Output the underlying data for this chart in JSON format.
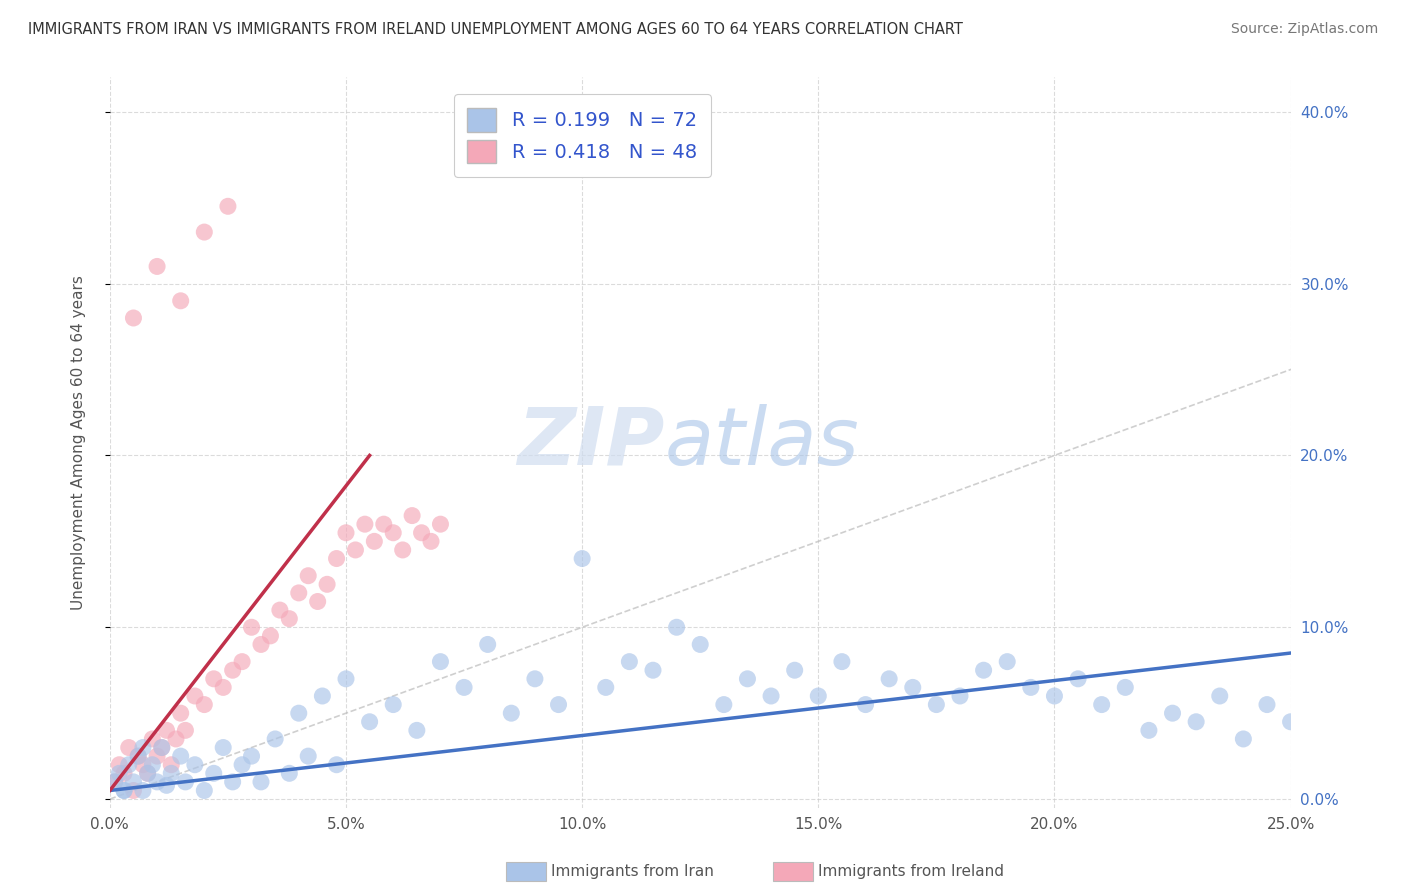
{
  "title": "IMMIGRANTS FROM IRAN VS IMMIGRANTS FROM IRELAND UNEMPLOYMENT AMONG AGES 60 TO 64 YEARS CORRELATION CHART",
  "source": "Source: ZipAtlas.com",
  "xlabel_center": "Immigrants from Iran",
  "ylabel": "Unemployment Among Ages 60 to 64 years",
  "yticks_right_vals": [
    0.0,
    0.1,
    0.2,
    0.3,
    0.4
  ],
  "xlim": [
    0.0,
    0.25
  ],
  "ylim": [
    -0.005,
    0.42
  ],
  "legend_iran_R": "0.199",
  "legend_iran_N": "72",
  "legend_ireland_R": "0.418",
  "legend_ireland_N": "48",
  "color_iran": "#aac4e8",
  "color_ireland": "#f4a8b8",
  "color_iran_line": "#4472c4",
  "color_ireland_line": "#c0304a",
  "color_legend_text": "#3355cc",
  "watermark_zip": "ZIP",
  "watermark_atlas": "atlas",
  "background_color": "#ffffff",
  "grid_color": "#cccccc",
  "iran_scatter_x": [
    0.001,
    0.002,
    0.003,
    0.004,
    0.005,
    0.006,
    0.007,
    0.008,
    0.009,
    0.01,
    0.011,
    0.012,
    0.013,
    0.015,
    0.016,
    0.018,
    0.02,
    0.022,
    0.024,
    0.026,
    0.028,
    0.03,
    0.032,
    0.035,
    0.038,
    0.04,
    0.042,
    0.045,
    0.048,
    0.05,
    0.055,
    0.06,
    0.065,
    0.07,
    0.075,
    0.08,
    0.085,
    0.09,
    0.095,
    0.1,
    0.105,
    0.11,
    0.115,
    0.12,
    0.125,
    0.13,
    0.135,
    0.14,
    0.145,
    0.15,
    0.155,
    0.16,
    0.165,
    0.17,
    0.175,
    0.18,
    0.185,
    0.19,
    0.195,
    0.2,
    0.205,
    0.21,
    0.215,
    0.22,
    0.225,
    0.23,
    0.235,
    0.24,
    0.245,
    0.25,
    0.003,
    0.007
  ],
  "iran_scatter_y": [
    0.01,
    0.015,
    0.005,
    0.02,
    0.01,
    0.025,
    0.005,
    0.015,
    0.02,
    0.01,
    0.03,
    0.008,
    0.015,
    0.025,
    0.01,
    0.02,
    0.005,
    0.015,
    0.03,
    0.01,
    0.02,
    0.025,
    0.01,
    0.035,
    0.015,
    0.05,
    0.025,
    0.06,
    0.02,
    0.07,
    0.045,
    0.055,
    0.04,
    0.08,
    0.065,
    0.09,
    0.05,
    0.07,
    0.055,
    0.14,
    0.065,
    0.08,
    0.075,
    0.1,
    0.09,
    0.055,
    0.07,
    0.06,
    0.075,
    0.06,
    0.08,
    0.055,
    0.07,
    0.065,
    0.055,
    0.06,
    0.075,
    0.08,
    0.065,
    0.06,
    0.07,
    0.055,
    0.065,
    0.04,
    0.05,
    0.045,
    0.06,
    0.035,
    0.055,
    0.045,
    0.005,
    0.03
  ],
  "ireland_scatter_x": [
    0.001,
    0.002,
    0.003,
    0.004,
    0.005,
    0.006,
    0.007,
    0.008,
    0.009,
    0.01,
    0.011,
    0.012,
    0.013,
    0.014,
    0.015,
    0.016,
    0.018,
    0.02,
    0.022,
    0.024,
    0.026,
    0.028,
    0.03,
    0.032,
    0.034,
    0.036,
    0.038,
    0.04,
    0.042,
    0.044,
    0.046,
    0.048,
    0.05,
    0.052,
    0.054,
    0.056,
    0.058,
    0.06,
    0.062,
    0.064,
    0.066,
    0.068,
    0.07,
    0.005,
    0.01,
    0.015,
    0.02,
    0.025
  ],
  "ireland_scatter_y": [
    0.01,
    0.02,
    0.015,
    0.03,
    0.005,
    0.025,
    0.02,
    0.015,
    0.035,
    0.025,
    0.03,
    0.04,
    0.02,
    0.035,
    0.05,
    0.04,
    0.06,
    0.055,
    0.07,
    0.065,
    0.075,
    0.08,
    0.1,
    0.09,
    0.095,
    0.11,
    0.105,
    0.12,
    0.13,
    0.115,
    0.125,
    0.14,
    0.155,
    0.145,
    0.16,
    0.15,
    0.16,
    0.155,
    0.145,
    0.165,
    0.155,
    0.15,
    0.16,
    0.28,
    0.31,
    0.29,
    0.33,
    0.345
  ],
  "iran_trend_x": [
    0.0,
    0.25
  ],
  "iran_trend_y": [
    0.005,
    0.085
  ],
  "ireland_trend_x": [
    0.0,
    0.055
  ],
  "ireland_trend_y": [
    0.005,
    0.2
  ]
}
